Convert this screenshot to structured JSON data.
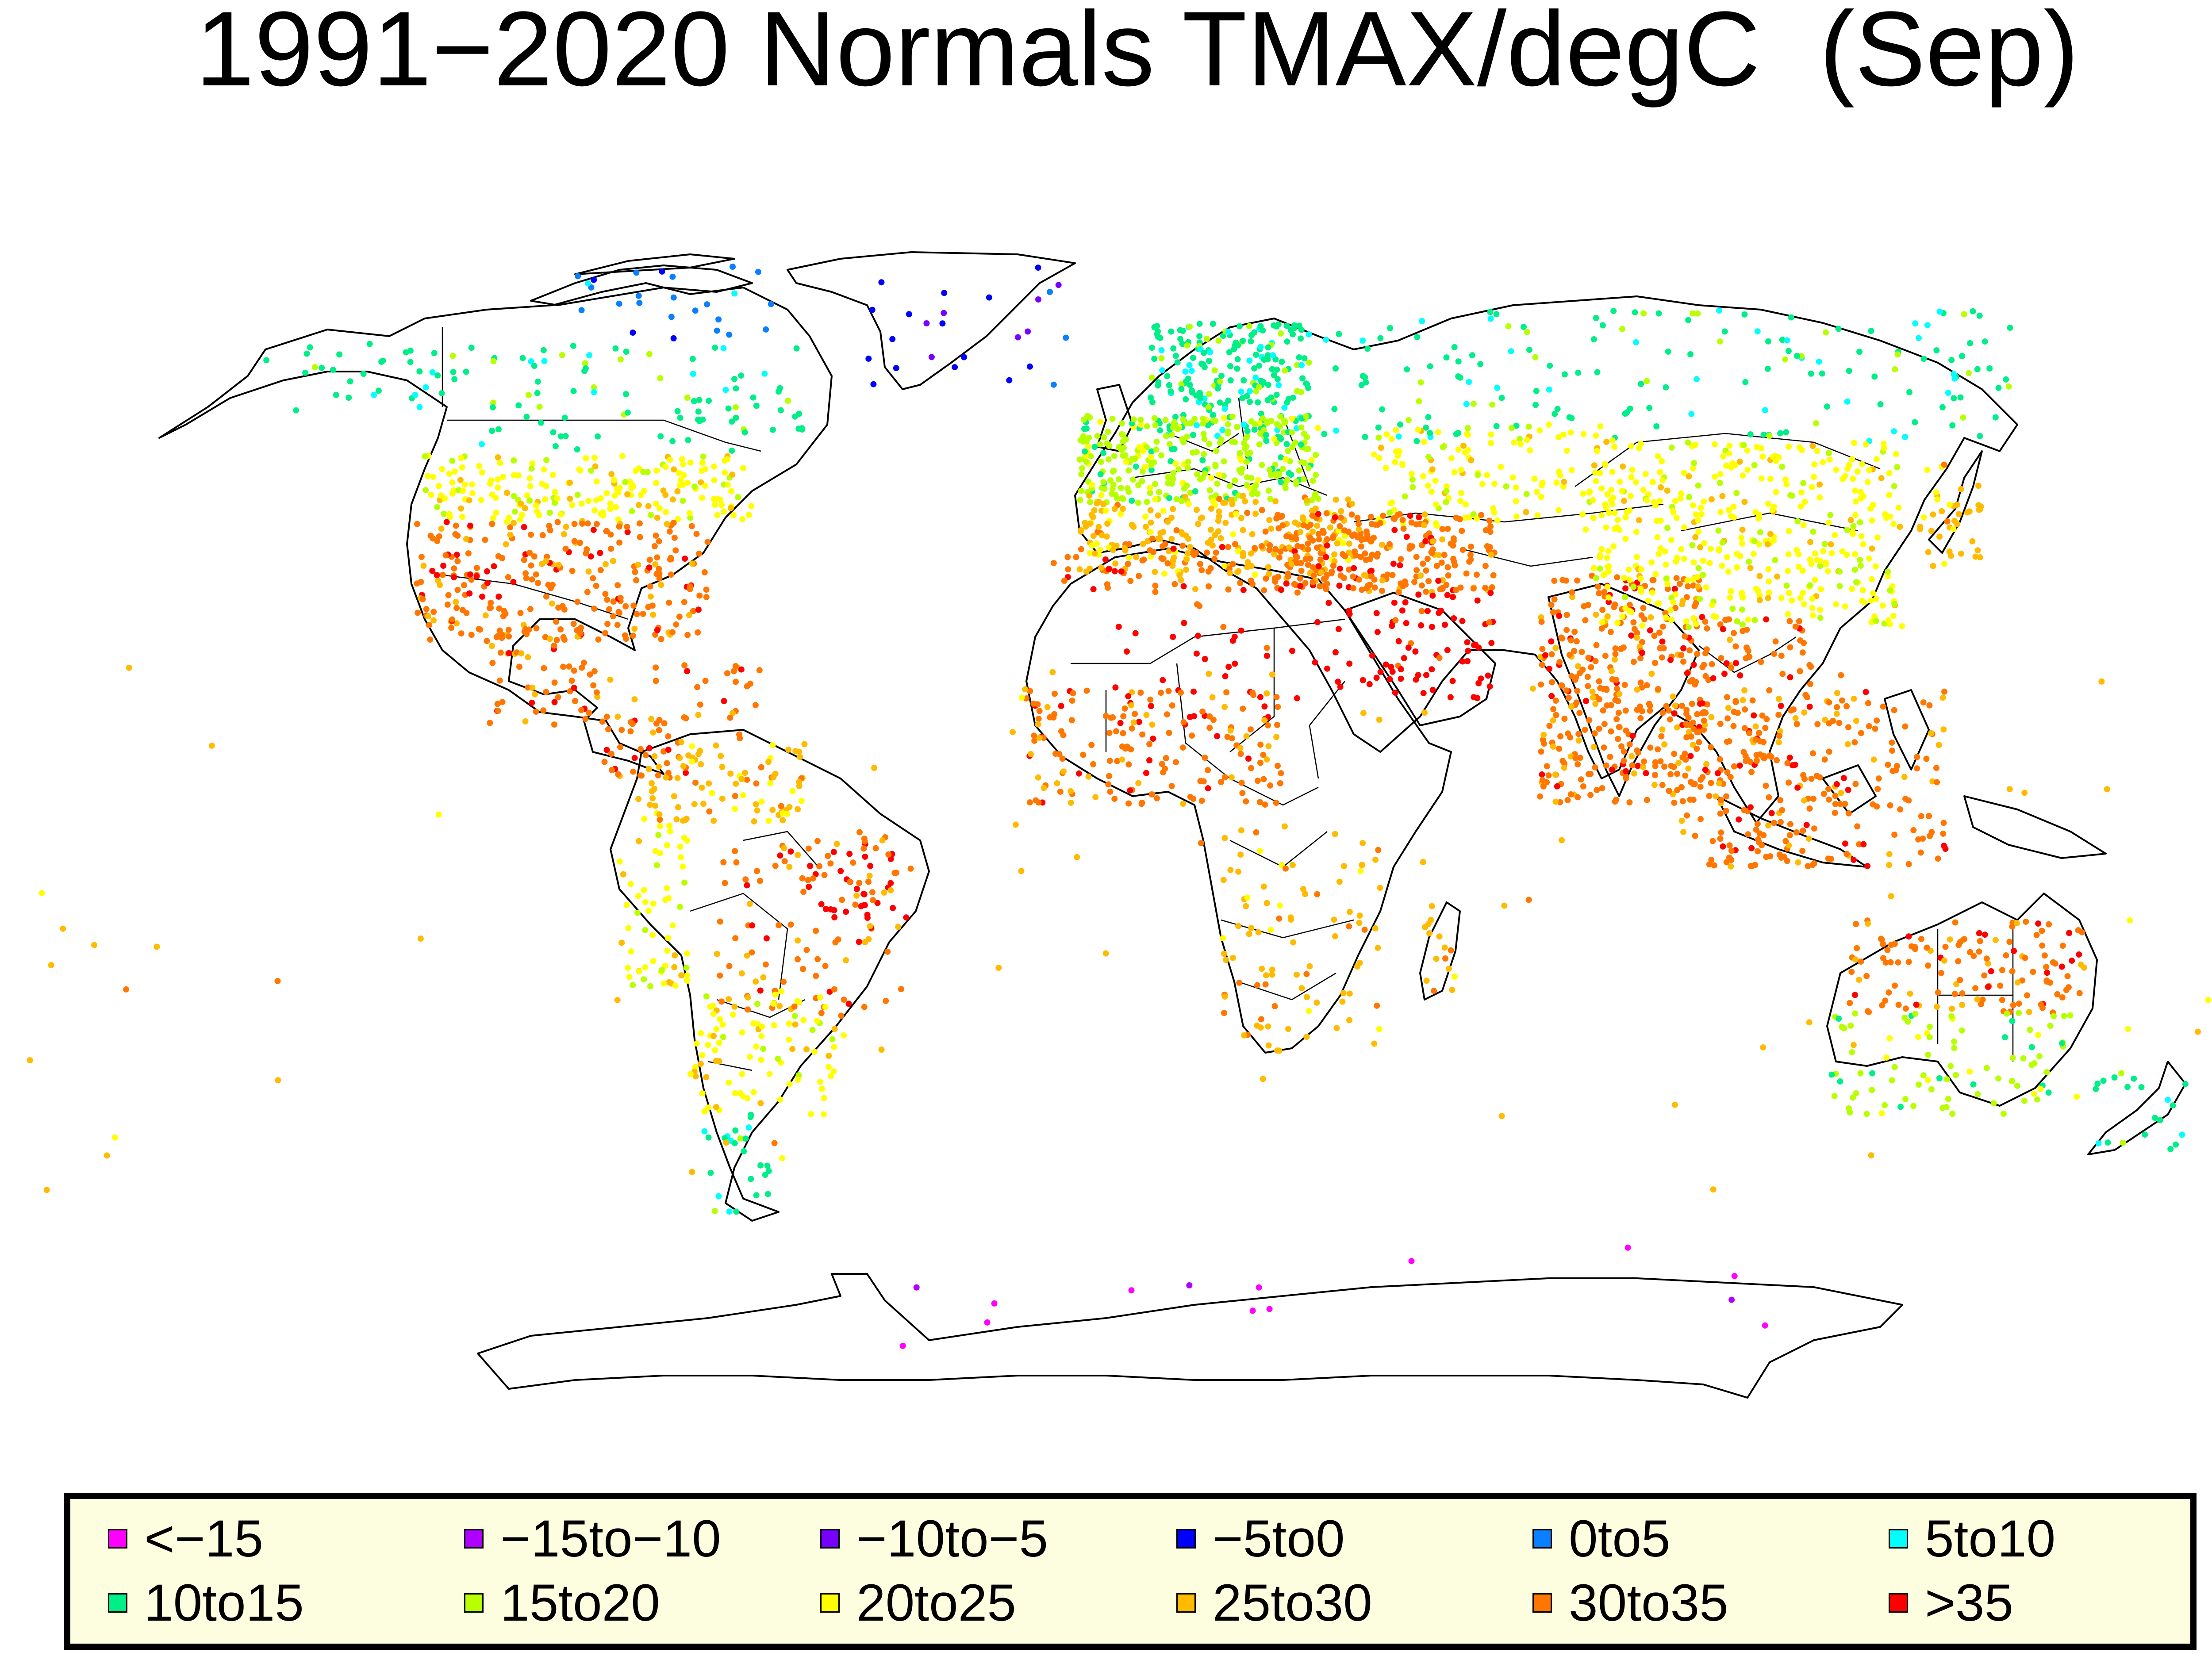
{
  "title": "1991−2020 Normals TMAX/degC  (Sep)",
  "legend": [
    {
      "label": "<−15",
      "color": "#ff00ff"
    },
    {
      "label": "−15to−10",
      "color": "#b000ff"
    },
    {
      "label": "−10to−5",
      "color": "#7700ff"
    },
    {
      "label": "−5to0",
      "color": "#0000ff"
    },
    {
      "label": "0to5",
      "color": "#0a7fff"
    },
    {
      "label": "5to10",
      "color": "#00ffff"
    },
    {
      "label": "10to15",
      "color": "#00ee88"
    },
    {
      "label": "15to20",
      "color": "#b8ff00"
    },
    {
      "label": "20to25",
      "color": "#ffff00"
    },
    {
      "label": "25to30",
      "color": "#ffbb00"
    },
    {
      "label": "30to35",
      "color": "#ff7700"
    },
    {
      "label": ">35",
      "color": "#ff0000"
    }
  ],
  "map": {
    "projection": "world (Robinson-like)",
    "boundaries": "national borders",
    "station_regions": [
      {
        "name": "Alaska",
        "category": 6
      },
      {
        "name": "Canada",
        "category": 6
      },
      {
        "name": "Arctic Canada",
        "category": 4
      },
      {
        "name": "Greenland",
        "category": 3
      },
      {
        "name": "USA north",
        "category": 8
      },
      {
        "name": "USA south",
        "category": 10
      },
      {
        "name": "USA southwest",
        "category": 11
      },
      {
        "name": "Mexico",
        "category": 10
      },
      {
        "name": "Central America",
        "category": 10
      },
      {
        "name": "Caribbean",
        "category": 10
      },
      {
        "name": "Colombia/Venezuela",
        "category": 9
      },
      {
        "name": "Andes",
        "category": 8
      },
      {
        "name": "Brazil northeast",
        "category": 11
      },
      {
        "name": "Brazil",
        "category": 10
      },
      {
        "name": "Southern South America",
        "category": 8
      },
      {
        "name": "Patagonia",
        "category": 6
      },
      {
        "name": "Scandinavia",
        "category": 6
      },
      {
        "name": "Central Europe",
        "category": 7
      },
      {
        "name": "Southern Europe",
        "category": 9
      },
      {
        "name": "Russia",
        "category": 6
      },
      {
        "name": "Kazakhstan",
        "category": 8
      },
      {
        "name": "Middle East",
        "category": 10
      },
      {
        "name": "Arabia",
        "category": 11
      },
      {
        "name": "North Africa",
        "category": 10
      },
      {
        "name": "Sahara",
        "category": 11
      },
      {
        "name": "Sahel/West Africa",
        "category": 10
      },
      {
        "name": "Southern Africa",
        "category": 9
      },
      {
        "name": "Madagascar",
        "category": 9
      },
      {
        "name": "India",
        "category": 10
      },
      {
        "name": "Southeast Asia",
        "category": 10
      },
      {
        "name": "China",
        "category": 8
      },
      {
        "name": "Japan",
        "category": 9
      },
      {
        "name": "Maritime SE Asia",
        "category": 10
      },
      {
        "name": "Australia north",
        "category": 10
      },
      {
        "name": "Australia south",
        "category": 7
      },
      {
        "name": "New Zealand",
        "category": 6
      },
      {
        "name": "Antarctica",
        "category": 0
      },
      {
        "name": "Pacific islands",
        "category": 9
      }
    ]
  }
}
